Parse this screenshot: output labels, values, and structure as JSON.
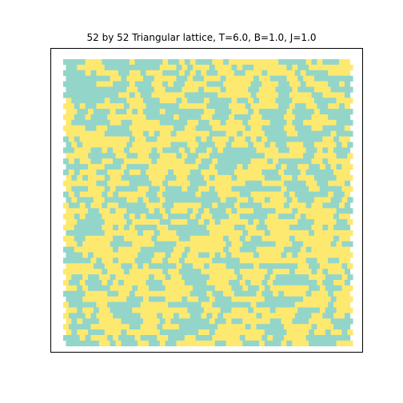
{
  "chart_data": {
    "type": "heatmap",
    "title": "52 by 52 Triangular lattice, T=6.0, B=1.0, J=1.0",
    "rows": 52,
    "cols": 52,
    "lattice": "triangular",
    "states": [
      -1,
      1
    ],
    "colors": {
      "-1": "#93d5c9",
      "1": "#fde96f"
    },
    "axes_visible": false,
    "grid": false,
    "seed": 6021
  }
}
